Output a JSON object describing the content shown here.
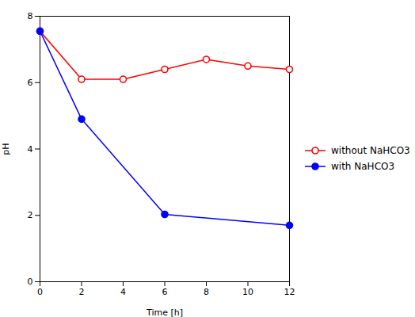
{
  "chart_data": {
    "type": "line",
    "xlabel": "Time [h]",
    "ylabel": "pH",
    "series": [
      {
        "name": "without NaHCO3",
        "color": "#ff0000",
        "marker": "open_circle",
        "x": [
          0,
          2,
          4,
          6,
          8,
          10,
          12
        ],
        "values": [
          7.55,
          6.1,
          6.1,
          6.4,
          6.7,
          6.5,
          6.4
        ]
      },
      {
        "name": "with NaHCO3",
        "color": "#0000ff",
        "marker": "circle",
        "x": [
          0,
          2,
          6,
          12
        ],
        "values": [
          7.55,
          4.9,
          2.03,
          1.7
        ]
      }
    ],
    "xlim": [
      0,
      12
    ],
    "ylim": [
      0,
      8
    ],
    "xticks": [
      0,
      2,
      4,
      6,
      8,
      10,
      12
    ],
    "yticks": [
      0,
      2,
      4,
      6,
      8
    ],
    "grid": false,
    "legend": "right"
  }
}
